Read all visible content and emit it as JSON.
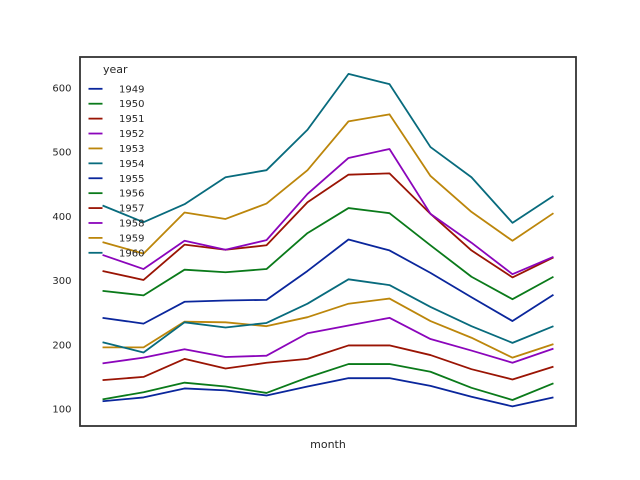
{
  "chart_data": {
    "type": "line",
    "title": "",
    "xlabel": "month",
    "ylabel": "",
    "x": [
      1,
      2,
      3,
      4,
      5,
      6,
      7,
      8,
      9,
      10,
      11,
      12
    ],
    "x_tick_labels": [],
    "yticks": [
      100,
      200,
      300,
      400,
      500,
      600
    ],
    "ylim": [
      73.5,
      648.3
    ],
    "xlim": [
      -0.55,
      11.55
    ],
    "grid": false,
    "legend": {
      "title": "year",
      "position": "upper-left",
      "frame": false
    },
    "palette": [
      "#0a269c",
      "#0a7a1a",
      "#9a1404",
      "#8b05bb",
      "#bc860b",
      "#086b7d"
    ],
    "frame_color": "#333333",
    "text_color": "#262626",
    "series": [
      {
        "name": "1949",
        "color": "#0a269c",
        "values": [
          112,
          118,
          132,
          129,
          121,
          135,
          148,
          148,
          136,
          119,
          104,
          118
        ]
      },
      {
        "name": "1950",
        "color": "#0a7a1a",
        "values": [
          115,
          126,
          141,
          135,
          125,
          149,
          170,
          170,
          158,
          133,
          114,
          140
        ]
      },
      {
        "name": "1951",
        "color": "#9a1404",
        "values": [
          145,
          150,
          178,
          163,
          172,
          178,
          199,
          199,
          184,
          162,
          146,
          166
        ]
      },
      {
        "name": "1952",
        "color": "#8b05bb",
        "values": [
          171,
          180,
          193,
          181,
          183,
          218,
          230,
          242,
          209,
          191,
          172,
          194
        ]
      },
      {
        "name": "1953",
        "color": "#bc860b",
        "values": [
          196,
          196,
          236,
          235,
          229,
          243,
          264,
          272,
          237,
          211,
          180,
          201
        ]
      },
      {
        "name": "1954",
        "color": "#086b7d",
        "values": [
          204,
          188,
          235,
          227,
          234,
          264,
          302,
          293,
          259,
          229,
          203,
          229
        ]
      },
      {
        "name": "1955",
        "color": "#0a269c",
        "values": [
          242,
          233,
          267,
          269,
          270,
          315,
          364,
          347,
          312,
          274,
          237,
          278
        ]
      },
      {
        "name": "1956",
        "color": "#0a7a1a",
        "values": [
          284,
          277,
          317,
          313,
          318,
          374,
          413,
          405,
          355,
          306,
          271,
          306
        ]
      },
      {
        "name": "1957",
        "color": "#9a1404",
        "values": [
          315,
          301,
          356,
          348,
          355,
          422,
          465,
          467,
          404,
          347,
          305,
          336
        ]
      },
      {
        "name": "1958",
        "color": "#8b05bb",
        "values": [
          340,
          318,
          362,
          348,
          363,
          435,
          491,
          505,
          404,
          359,
          310,
          337
        ]
      },
      {
        "name": "1959",
        "color": "#bc860b",
        "values": [
          360,
          342,
          406,
          396,
          420,
          472,
          548,
          559,
          463,
          407,
          362,
          405
        ]
      },
      {
        "name": "1960",
        "color": "#086b7d",
        "values": [
          417,
          391,
          419,
          461,
          472,
          535,
          622,
          606,
          508,
          461,
          390,
          432
        ]
      }
    ]
  }
}
